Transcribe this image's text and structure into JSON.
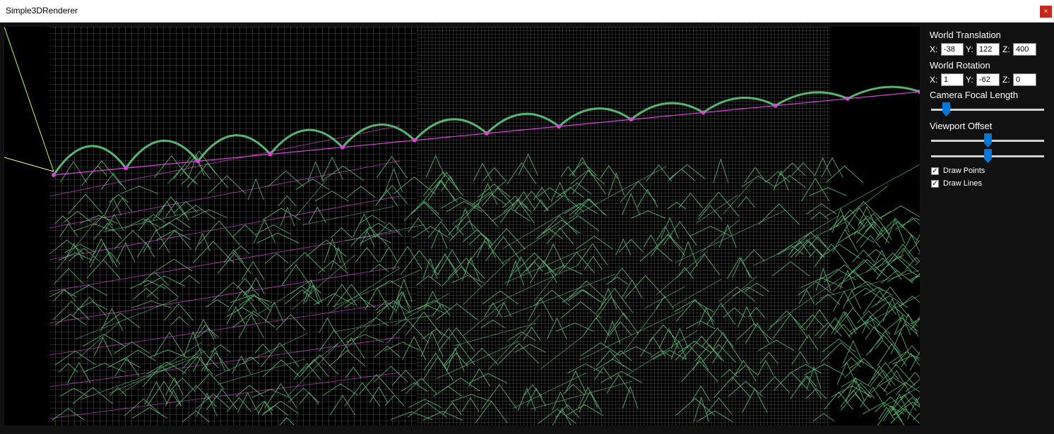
{
  "window": {
    "title": "Simple3DRenderer",
    "close_glyph": "×"
  },
  "panel": {
    "world_translation": {
      "title": "World Translation",
      "x_label": "X:",
      "x_value": "-38",
      "y_label": "Y:",
      "y_value": "122",
      "z_label": "Z:",
      "z_value": "400"
    },
    "world_rotation": {
      "title": "World Rotation",
      "x_label": "X:",
      "x_value": "1",
      "y_label": "Y:",
      "y_value": "-62",
      "z_label": "Z:",
      "z_value": "0"
    },
    "camera_focal_length": {
      "title": "Camera Focal Length",
      "level": 0.11
    },
    "viewport_offset": {
      "title": "Viewport Offset",
      "horizontal_level": 0.5,
      "vertical_level": 0.5
    },
    "draw_points": {
      "label": "Draw Points",
      "checked": true
    },
    "draw_lines": {
      "label": "Draw Lines",
      "checked": true
    }
  },
  "colors": {
    "mesh_green": "#5ec87a",
    "point_magenta": "#e040e0",
    "grid_white": "#ffffff",
    "axis_yellow": "#ffff80",
    "accent_blue": "#0078d7"
  }
}
